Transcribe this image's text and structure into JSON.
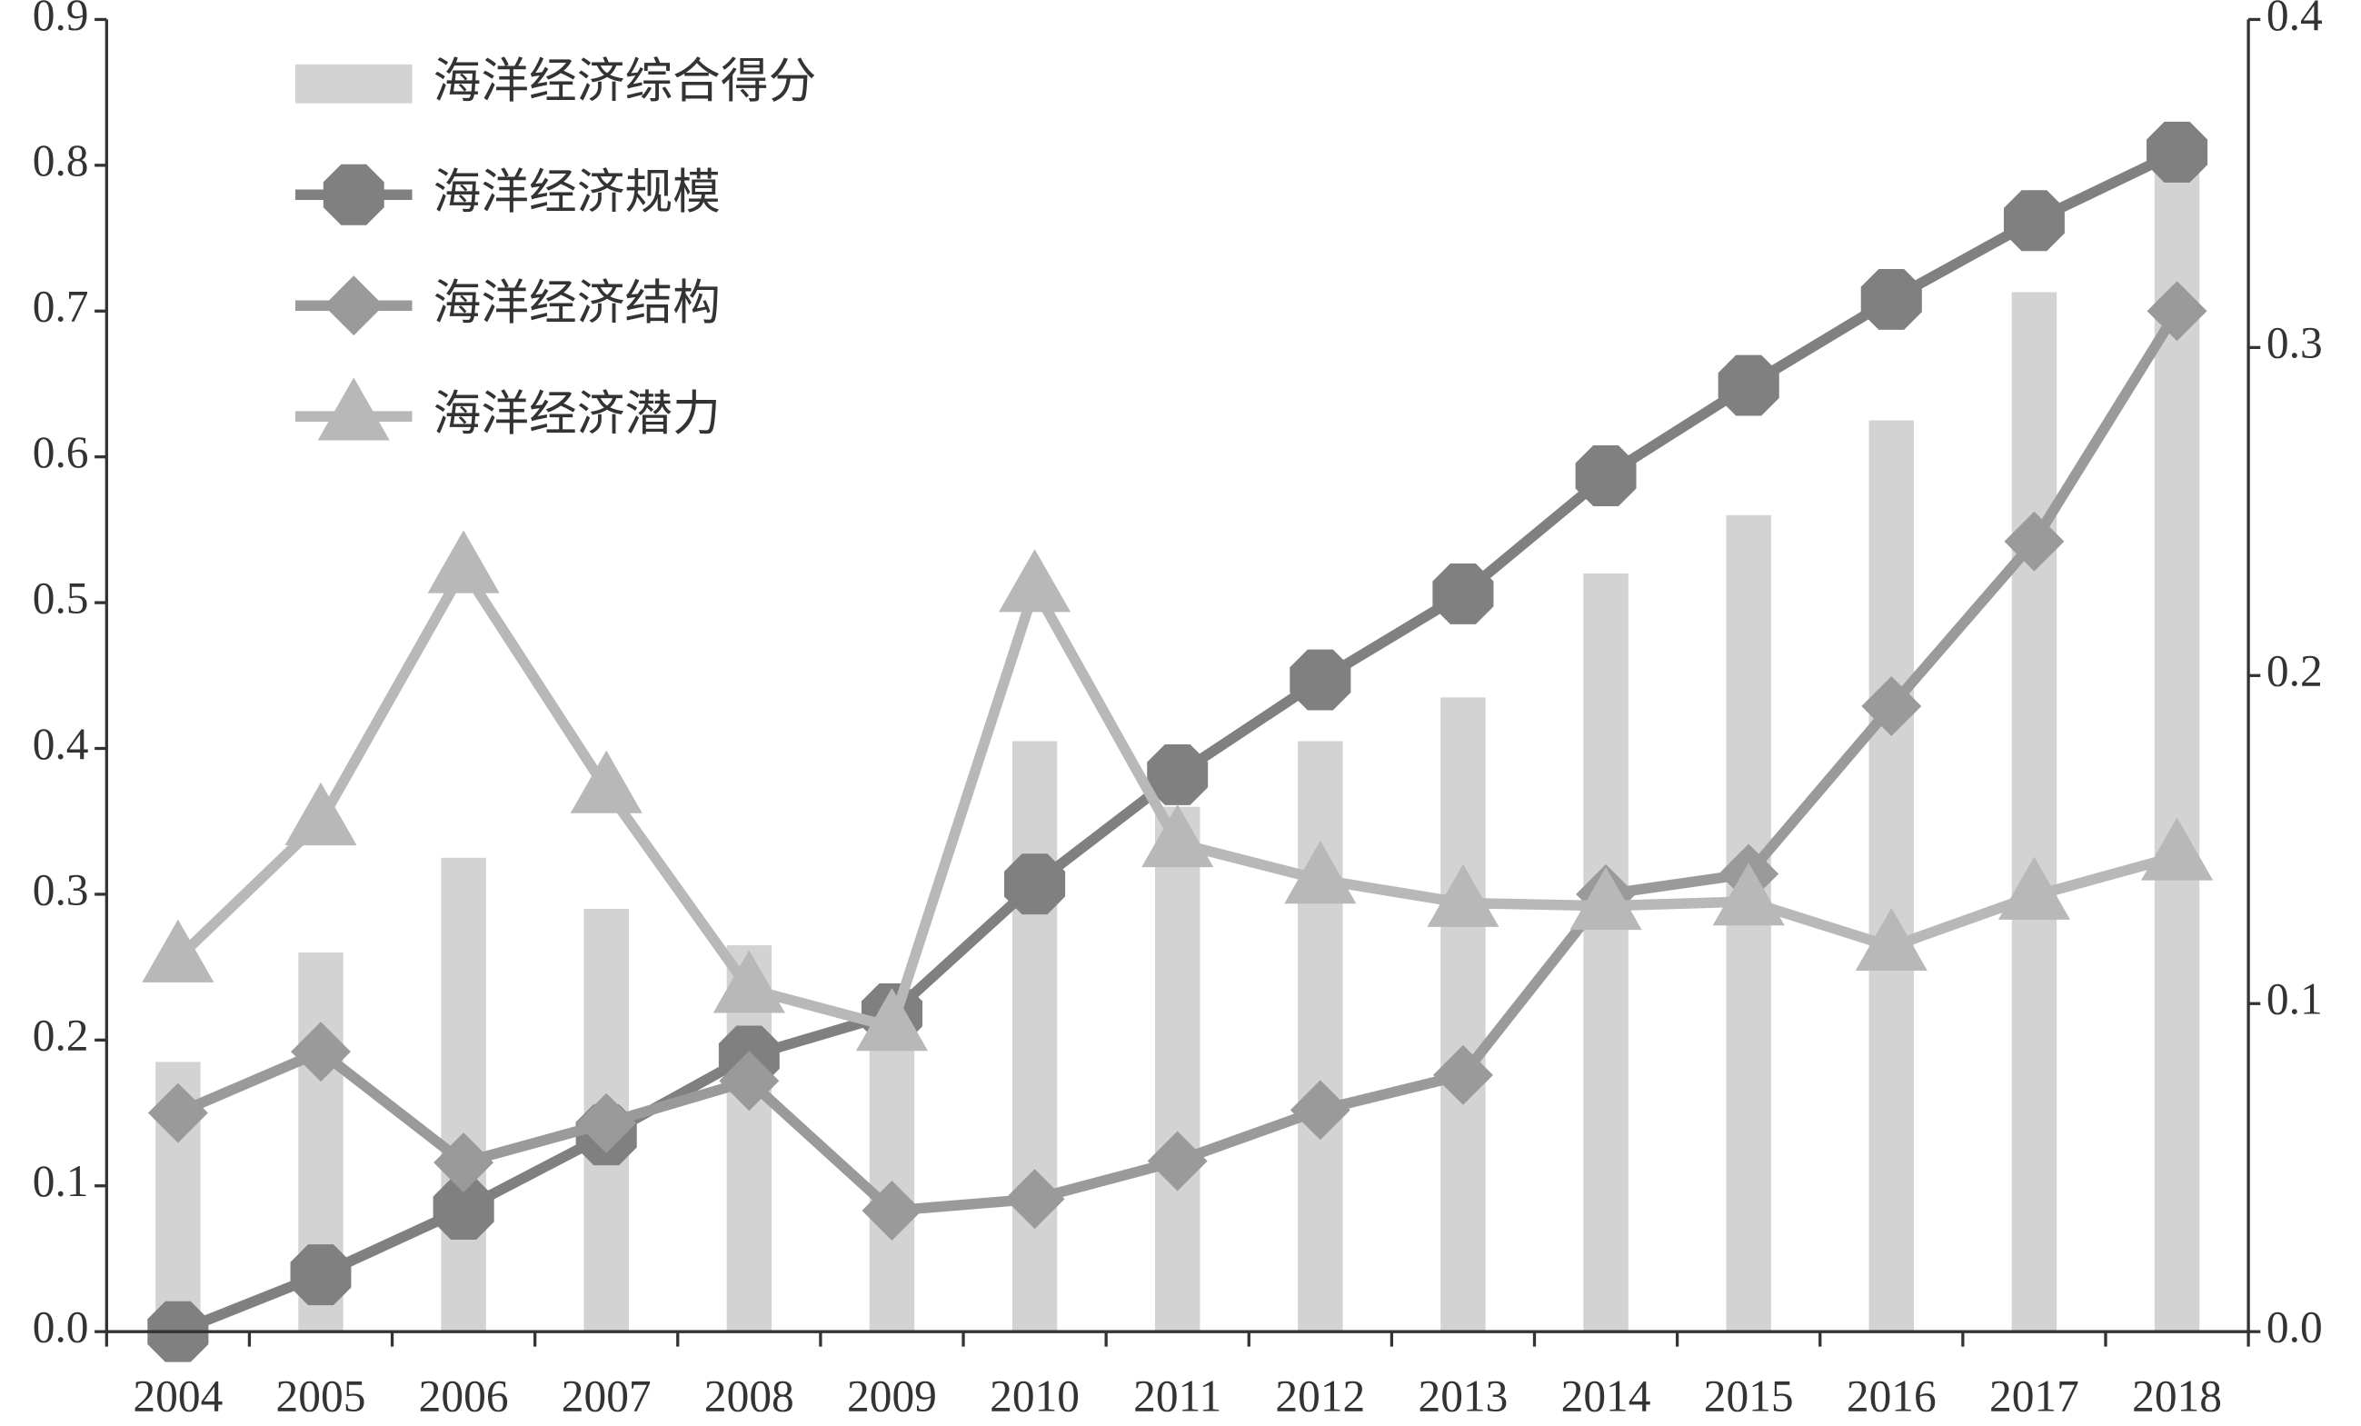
{
  "chart_data": {
    "type": "bar_line",
    "categories": [
      "2004",
      "2005",
      "2006",
      "2007",
      "2008",
      "2009",
      "2010",
      "2011",
      "2012",
      "2013",
      "2014",
      "2015",
      "2016",
      "2017",
      "2018"
    ],
    "series": [
      {
        "name": "海洋经济综合得分",
        "type": "bar",
        "color": "#d3d3d3",
        "values": [
          0.185,
          0.26,
          0.325,
          0.29,
          0.265,
          0.21,
          0.405,
          0.36,
          0.405,
          0.435,
          0.52,
          0.56,
          0.625,
          0.713,
          0.8
        ]
      },
      {
        "name": "海洋经济规模",
        "type": "line",
        "marker": "octagon",
        "color": "#808080",
        "values": [
          0.0,
          0.039,
          0.084,
          0.135,
          0.189,
          0.218,
          0.307,
          0.382,
          0.447,
          0.506,
          0.587,
          0.649,
          0.708,
          0.762,
          0.809
        ]
      },
      {
        "name": "海洋经济结构",
        "type": "line",
        "marker": "diamond",
        "color": "#9a9a9a",
        "values": [
          0.15,
          0.192,
          0.116,
          0.143,
          0.172,
          0.083,
          0.091,
          0.117,
          0.152,
          0.176,
          0.3,
          0.314,
          0.429,
          0.542,
          0.7
        ]
      },
      {
        "name": "海洋经济潜力",
        "type": "line",
        "marker": "triangle",
        "color": "#b8b8b8",
        "values": [
          0.256,
          0.35,
          0.523,
          0.372,
          0.235,
          0.209,
          0.51,
          0.335,
          0.31,
          0.294,
          0.292,
          0.295,
          0.264,
          0.299,
          0.326
        ]
      }
    ],
    "ylim": [
      0,
      0.9
    ],
    "yticks": [
      {
        "value": 0,
        "label": "0.0"
      },
      0.1,
      0.2,
      0.3,
      0.4,
      0.5,
      0.6,
      0.7,
      0.8,
      0.9
    ],
    "y2lim": [
      0,
      0.4
    ],
    "y2ticks": [
      {
        "value": 0,
        "label": "0.0"
      },
      0.1,
      0.2,
      0.3,
      0.4
    ],
    "legend": "upper-left"
  }
}
